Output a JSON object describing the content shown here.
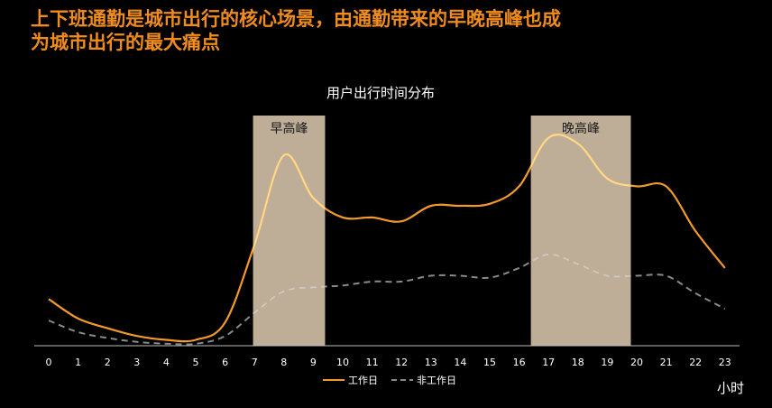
{
  "headline": {
    "line1": "上下班通勤是城市出行的核心场景，由通勤带来的早晚高峰也成",
    "line2": "为城市出行的最大痛点"
  },
  "colors": {
    "headline": "#f08c1e",
    "workday_line": "#f29b2a",
    "workday_peak_line": "#ffd88a",
    "nonworkday_line": "#8a8a8a",
    "nonworkday_peak_line": "#d0c8bc",
    "peak_band": "#bfae97",
    "axis": "#bdbdbd"
  },
  "chart_data": {
    "type": "line",
    "title": "用户出行时间分布",
    "xlabel": "小时",
    "ylabel": "",
    "x": [
      0,
      1,
      2,
      3,
      4,
      5,
      6,
      7,
      8,
      9,
      10,
      11,
      12,
      13,
      14,
      15,
      16,
      17,
      18,
      19,
      20,
      21,
      22,
      23
    ],
    "ylim": [
      0,
      100
    ],
    "series": [
      {
        "name": "工作日",
        "style": "solid",
        "values": [
          24,
          14,
          9,
          5,
          3,
          3,
          12,
          52,
          98,
          76,
          66,
          66,
          64,
          72,
          72,
          73,
          82,
          107,
          104,
          86,
          82,
          82,
          59,
          40
        ]
      },
      {
        "name": "非工作日",
        "style": "dashed",
        "values": [
          13,
          7,
          4,
          2,
          1,
          1,
          5,
          17,
          28,
          30,
          31,
          33,
          33,
          36,
          36,
          35,
          40,
          47,
          42,
          36,
          36,
          36,
          27,
          19
        ]
      }
    ],
    "peak_bands": [
      {
        "label": "早高峰",
        "from": 6.95,
        "to": 9.4
      },
      {
        "label": "晚高峰",
        "from": 16.4,
        "to": 19.8
      }
    ],
    "legend_position": "bottom-center",
    "grid": false
  }
}
